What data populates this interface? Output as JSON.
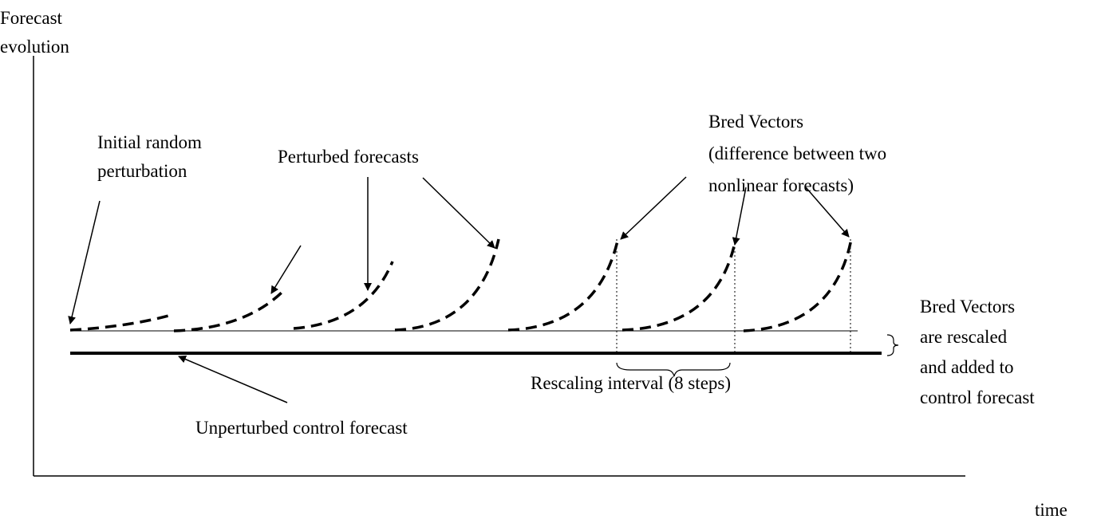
{
  "y_axis_label": {
    "lines": [
      "Forecast",
      "evolution"
    ]
  },
  "x_axis_label": "time",
  "labels": {
    "initial": {
      "lines": [
        "Initial random",
        "perturbation"
      ]
    },
    "perturbed": "Perturbed forecasts",
    "bred_vectors": {
      "lines": [
        "Bred Vectors",
        "(difference between two",
        "nonlinear forecasts)"
      ]
    },
    "rescaled": {
      "lines": [
        "Bred Vectors",
        "are rescaled",
        "and added to",
        "control forecast"
      ]
    },
    "interval": "Rescaling interval (8 steps)",
    "control": "Unperturbed control forecast"
  }
}
